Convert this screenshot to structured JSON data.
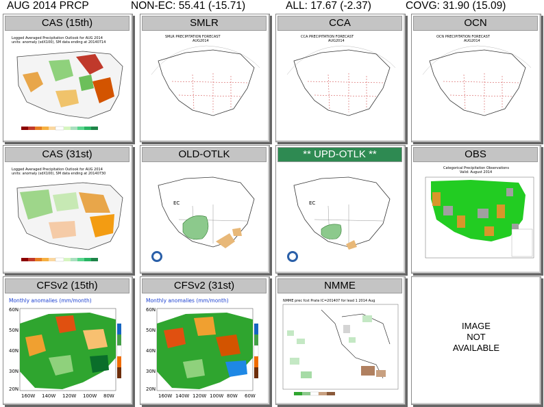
{
  "header": {
    "title": "AUG 2014 PRCP",
    "non_ec": "NON-EC: 55.41  (-15.71)",
    "all": "ALL: 17.67  (-2.37)",
    "covg": "COVG: 31.90  (15.09)"
  },
  "panels": [
    {
      "title": "CAS (15th)",
      "caption1": "Logged Averaged Precipitation Outlook for AUG 2014",
      "caption2": "units: anomaly (sdX100), SM data ending at 20140714",
      "kind": "cas"
    },
    {
      "title": "SMLR",
      "caption1": "SMLR PRECIPITATION FORECAST",
      "caption2": "AUG2014",
      "kind": "blank"
    },
    {
      "title": "CCA",
      "caption1": "CCA PRECIPITATION FORECAST",
      "caption2": "AUG2014",
      "kind": "blank"
    },
    {
      "title": "OCN",
      "caption1": "OCN PRECIPITATION FORECAST",
      "caption2": "AUG2014",
      "kind": "blank"
    },
    {
      "title": "CAS (31st)",
      "caption1": "Logged Averaged Precipitation Outlook for AUG 2014",
      "caption2": "units: anomaly (sdX100), SM data ending at 20140730",
      "kind": "cas"
    },
    {
      "title": "OLD-OTLK",
      "caption1": "",
      "caption2": "",
      "kind": "otlk"
    },
    {
      "title": "** UPD-OTLK **",
      "caption1": "",
      "caption2": "",
      "kind": "otlk",
      "highlight": true
    },
    {
      "title": "OBS",
      "caption1": "Categorical Precipitation Observations",
      "caption2": "Valid: August 2014",
      "kind": "obs"
    },
    {
      "title": "CFSv2 (15th)",
      "caption1": "Monthly anomalies (mm/month)",
      "caption2": "",
      "kind": "cfs"
    },
    {
      "title": "CFSv2 (31st)",
      "caption1": "Monthly anomalies (mm/month)",
      "caption2": "",
      "kind": "cfs"
    },
    {
      "title": "NMME",
      "caption1": "NMME prec fcst Prate IC=201407 for lead 1 2014 Aug",
      "caption2": "",
      "kind": "nmme"
    },
    {
      "title": "",
      "caption1": "",
      "caption2": "",
      "kind": "na"
    }
  ],
  "na_text": {
    "line1": "IMAGE",
    "line2": "NOT",
    "line3": "AVAILABLE"
  },
  "ec_label": "EC",
  "cfs_lat_labels": [
    "60N",
    "50N",
    "40N",
    "30N",
    "20N"
  ],
  "cfs_lon_labels": [
    "160W",
    "140W",
    "120W",
    "100W",
    "80W"
  ],
  "cfs_lon_labels_31": [
    "160W",
    "140W",
    "120W",
    "100W",
    "80W",
    "60W"
  ],
  "colors": {
    "wet": "#2fa52f",
    "dry": "#d97a17",
    "above": "#8cc98c",
    "below": "#e0b070",
    "highlight": "#2e8a52"
  }
}
